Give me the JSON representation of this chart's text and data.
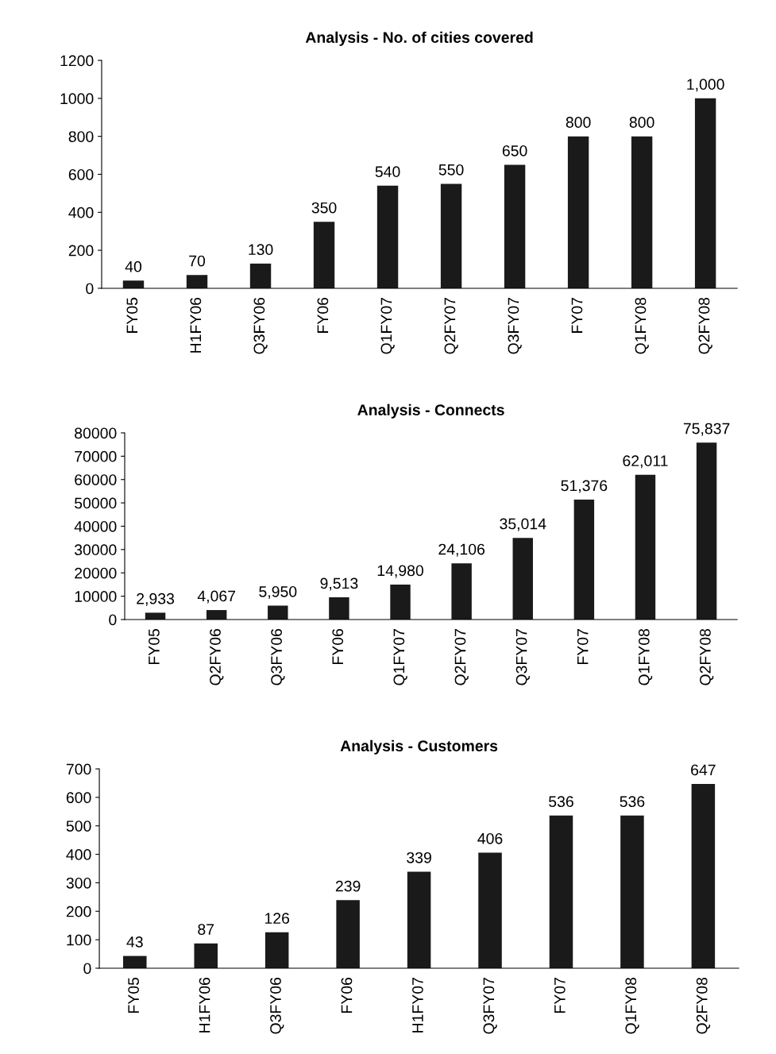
{
  "chart_data": [
    {
      "type": "bar",
      "title": "Analysis - No. of cities covered",
      "categories": [
        "FY05",
        "H1FY06",
        "Q3FY06",
        "FY06",
        "Q1FY07",
        "Q2FY07",
        "Q3FY07",
        "FY07",
        "Q1FY08",
        "Q2FY08"
      ],
      "values": [
        40,
        70,
        130,
        350,
        540,
        550,
        650,
        800,
        800,
        1000
      ],
      "value_labels": [
        "40",
        "70",
        "130",
        "350",
        "540",
        "550",
        "650",
        "800",
        "800",
        "1,000"
      ],
      "color": "#1a1a1a",
      "ylim": [
        0,
        1200
      ],
      "yticks": [
        0,
        200,
        400,
        600,
        800,
        1000,
        1200
      ],
      "grid": false,
      "legend": false
    },
    {
      "type": "bar",
      "title": "Analysis - Connects",
      "categories": [
        "FY05",
        "Q2FY06",
        "Q3FY06",
        "FY06",
        "Q1FY07",
        "Q2FY07",
        "Q3FY07",
        "FY07",
        "Q1FY08",
        "Q2FY08"
      ],
      "values": [
        2933,
        4067,
        5950,
        9513,
        14980,
        24106,
        35014,
        51376,
        62011,
        75837
      ],
      "value_labels": [
        "2,933",
        "4,067",
        "5,950",
        "9,513",
        "14,980",
        "24,106",
        "35,014",
        "51,376",
        "62,011",
        "75,837"
      ],
      "color": "#1a1a1a",
      "ylim": [
        0,
        80000
      ],
      "yticks": [
        0,
        10000,
        20000,
        30000,
        40000,
        50000,
        60000,
        70000,
        80000
      ],
      "grid": false,
      "legend": false
    },
    {
      "type": "bar",
      "title": "Analysis - Customers",
      "categories": [
        "FY05",
        "H1FY06",
        "Q3FY06",
        "FY06",
        "H1FY07",
        "Q3FY07",
        "FY07",
        "Q1FY08",
        "Q2FY08"
      ],
      "values": [
        43,
        87,
        126,
        239,
        339,
        406,
        536,
        536,
        647
      ],
      "value_labels": [
        "43",
        "87",
        "126",
        "239",
        "339",
        "406",
        "536",
        "536",
        "647"
      ],
      "color": "#1a1a1a",
      "ylim": [
        0,
        700
      ],
      "yticks": [
        0,
        100,
        200,
        300,
        400,
        500,
        600,
        700
      ],
      "grid": false,
      "legend": false
    }
  ]
}
